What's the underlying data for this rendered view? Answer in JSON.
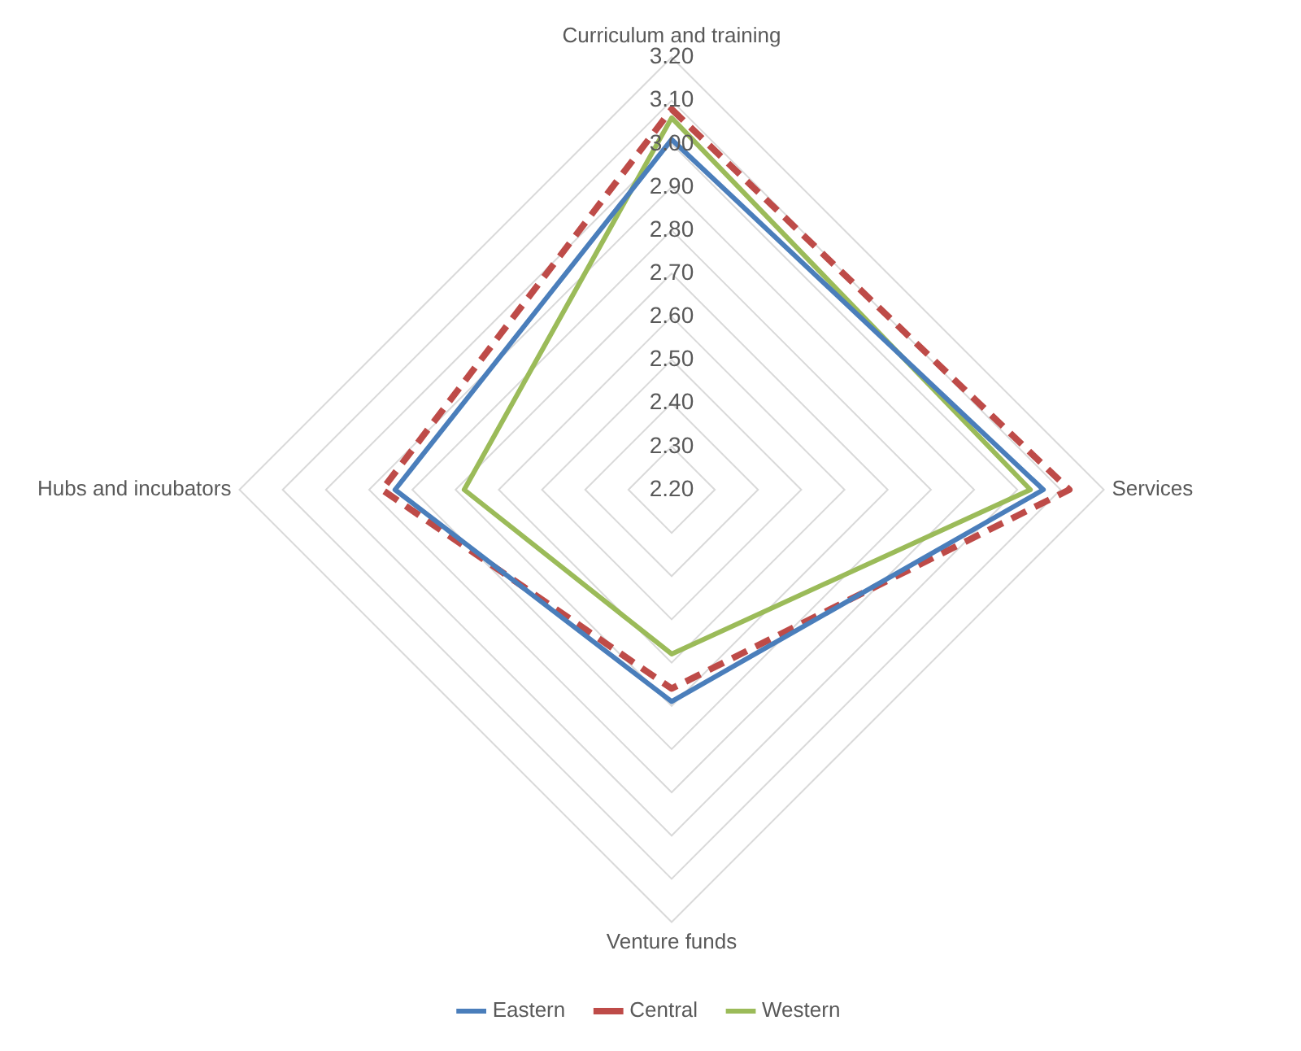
{
  "chart_data": {
    "type": "radar",
    "categories": [
      "Curriculum and training",
      "Services",
      "Venture funds",
      "Hubs and incubators"
    ],
    "series": [
      {
        "name": "Eastern",
        "color": "#4a7ebb",
        "values": [
          3.01,
          3.06,
          2.69,
          2.84
        ]
      },
      {
        "name": "Central",
        "color": "#be4b48",
        "values": [
          3.08,
          3.12,
          2.66,
          2.87
        ],
        "line_style": "dashed"
      },
      {
        "name": "Western",
        "color": "#9bbb59",
        "values": [
          3.06,
          3.03,
          2.58,
          2.68
        ]
      }
    ],
    "ylim": [
      2.2,
      3.2
    ],
    "yticks": [
      {
        "value": 2.2,
        "label": "2.20"
      },
      {
        "value": 2.3,
        "label": "2.30"
      },
      {
        "value": 2.4,
        "label": "2.40"
      },
      {
        "value": 2.5,
        "label": "2.50"
      },
      {
        "value": 2.6,
        "label": "2.60"
      },
      {
        "value": 2.7,
        "label": "2.70"
      },
      {
        "value": 2.8,
        "label": "2.80"
      },
      {
        "value": 2.9,
        "label": "2.90"
      },
      {
        "value": 3.0,
        "label": "3.00"
      },
      {
        "value": 3.1,
        "label": "3.10"
      },
      {
        "value": 3.2,
        "label": "3.20"
      }
    ],
    "grid": true,
    "legend": "bottom",
    "marker": "none",
    "line_style": "solid"
  }
}
